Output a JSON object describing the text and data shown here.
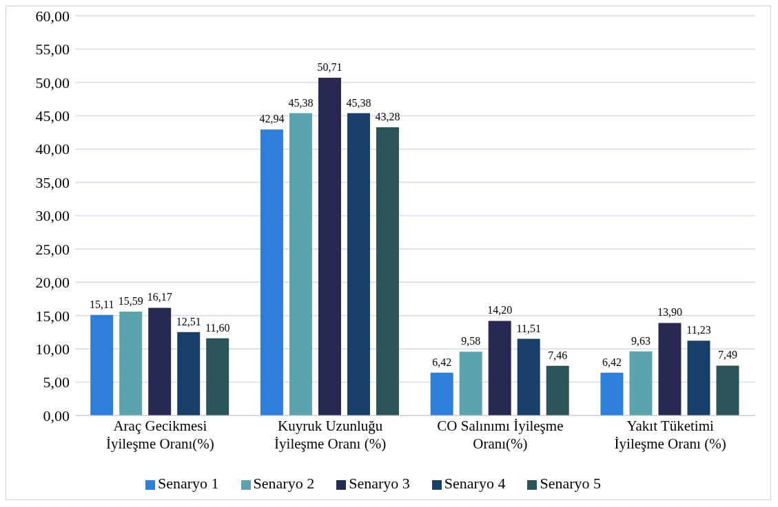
{
  "chart_data": {
    "type": "bar",
    "categories": [
      "Araç Gecikmesi İyileşme Oranı(%)",
      "Kuyruk Uzunluğu İyileşme Oranı (%)",
      "CO Salınımı İyileşme Oranı(%)",
      "Yakıt Tüketimi İyileşme Oranı (%)"
    ],
    "series": [
      {
        "name": "Senaryo 1",
        "color": "#2e7fd9",
        "values": [
          15.11,
          42.94,
          6.42,
          6.42
        ],
        "value_labels": [
          "15,11",
          "42,94",
          "6,42",
          "6,42"
        ]
      },
      {
        "name": "Senaryo 2",
        "color": "#5ba4ae",
        "values": [
          15.59,
          45.38,
          9.58,
          9.63
        ],
        "value_labels": [
          "15,59",
          "45,38",
          "9,58",
          "9,63"
        ]
      },
      {
        "name": "Senaryo 3",
        "color": "#272953",
        "values": [
          16.17,
          50.71,
          14.2,
          13.9
        ],
        "value_labels": [
          "16,17",
          "50,71",
          "14,20",
          "13,90"
        ]
      },
      {
        "name": "Senaryo 4",
        "color": "#173f6a",
        "values": [
          12.51,
          45.38,
          11.51,
          11.23
        ],
        "value_labels": [
          "12,51",
          "45,38",
          "11,51",
          "11,23"
        ]
      },
      {
        "name": "Senaryo 5",
        "color": "#2b5558",
        "values": [
          11.6,
          43.28,
          7.46,
          7.49
        ],
        "value_labels": [
          "11,60",
          "43,28",
          "7,46",
          "7,49"
        ]
      }
    ],
    "ylim": [
      0,
      60
    ],
    "yticks": [
      {
        "value": 0,
        "label": "0,00"
      },
      {
        "value": 5,
        "label": "5,00"
      },
      {
        "value": 10,
        "label": "10,00"
      },
      {
        "value": 15,
        "label": "15,00"
      },
      {
        "value": 20,
        "label": "20,00"
      },
      {
        "value": 25,
        "label": "25,00"
      },
      {
        "value": 30,
        "label": "30,00"
      },
      {
        "value": 35,
        "label": "35,00"
      },
      {
        "value": 40,
        "label": "40,00"
      },
      {
        "value": 45,
        "label": "45,00"
      },
      {
        "value": 50,
        "label": "50,00"
      },
      {
        "value": 55,
        "label": "55,00"
      },
      {
        "value": 60,
        "label": "60,00"
      }
    ],
    "grid": "y",
    "legend": "bottom"
  }
}
